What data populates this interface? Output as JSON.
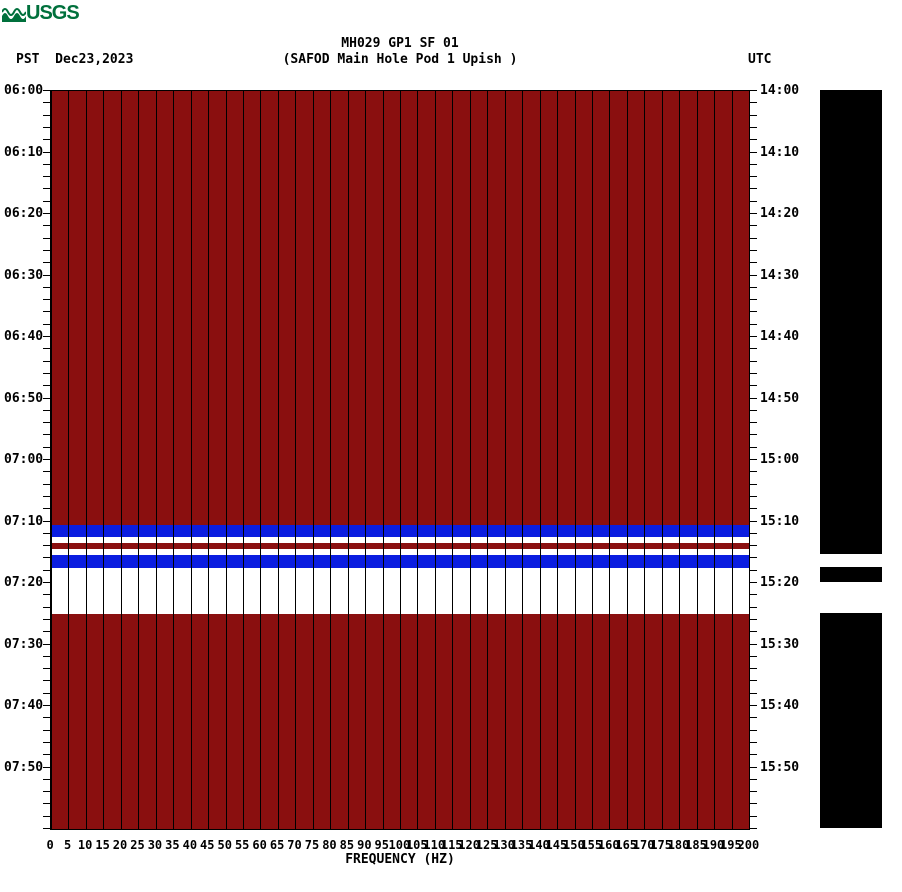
{
  "logo_text": "USGS",
  "title": "MH029 GP1 SF 01",
  "subtitle": "(SAFOD Main Hole Pod 1 Upish )",
  "tz_left_label": "PST",
  "date_label": "Dec23,2023",
  "tz_right_label": "UTC",
  "x_axis_title": "FREQUENCY (HZ)",
  "colors": {
    "dark_red": "#8a0f0f",
    "blue": "#0a1de0",
    "white": "#ffffff",
    "black": "#000000",
    "usgs_green": "#00703c"
  },
  "plot": {
    "y_pst": [
      "06:00",
      "06:10",
      "06:20",
      "06:30",
      "06:40",
      "06:50",
      "07:00",
      "07:10",
      "07:20",
      "07:30",
      "07:40",
      "07:50"
    ],
    "y_utc": [
      "14:00",
      "14:10",
      "14:20",
      "14:30",
      "14:40",
      "14:50",
      "15:00",
      "15:10",
      "15:20",
      "15:30",
      "15:40",
      "15:50"
    ],
    "y_total_minutes": 120,
    "y_major_step": 10,
    "y_minor_step": 2,
    "x_ticks": [
      0,
      5,
      10,
      15,
      20,
      25,
      30,
      35,
      40,
      45,
      50,
      55,
      60,
      65,
      70,
      75,
      80,
      85,
      90,
      95,
      100,
      105,
      110,
      115,
      120,
      125,
      130,
      135,
      140,
      145,
      150,
      155,
      160,
      165,
      170,
      175,
      180,
      185,
      190,
      195,
      200
    ],
    "x_max": 200,
    "bands": [
      {
        "from": 0,
        "to": 70.5,
        "color": "#8a0f0f"
      },
      {
        "from": 70.5,
        "to": 72.5,
        "color": "#0a1de0"
      },
      {
        "from": 72.5,
        "to": 73.5,
        "color": "#ffffff"
      },
      {
        "from": 73.5,
        "to": 74.5,
        "color": "#8a0f0f"
      },
      {
        "from": 74.5,
        "to": 75.5,
        "color": "#ffffff"
      },
      {
        "from": 75.5,
        "to": 77.5,
        "color": "#0a1de0"
      },
      {
        "from": 77.5,
        "to": 85,
        "color": "#ffffff"
      },
      {
        "from": 85,
        "to": 120,
        "color": "#8a0f0f"
      }
    ]
  },
  "sidebar": {
    "bands": [
      {
        "from": 0,
        "to": 75.5,
        "color": "#000000"
      },
      {
        "from": 75.5,
        "to": 77.5,
        "color": "#ffffff"
      },
      {
        "from": 77.5,
        "to": 80,
        "color": "#000000"
      },
      {
        "from": 80,
        "to": 85,
        "color": "#ffffff"
      },
      {
        "from": 85,
        "to": 120,
        "color": "#000000"
      }
    ]
  }
}
